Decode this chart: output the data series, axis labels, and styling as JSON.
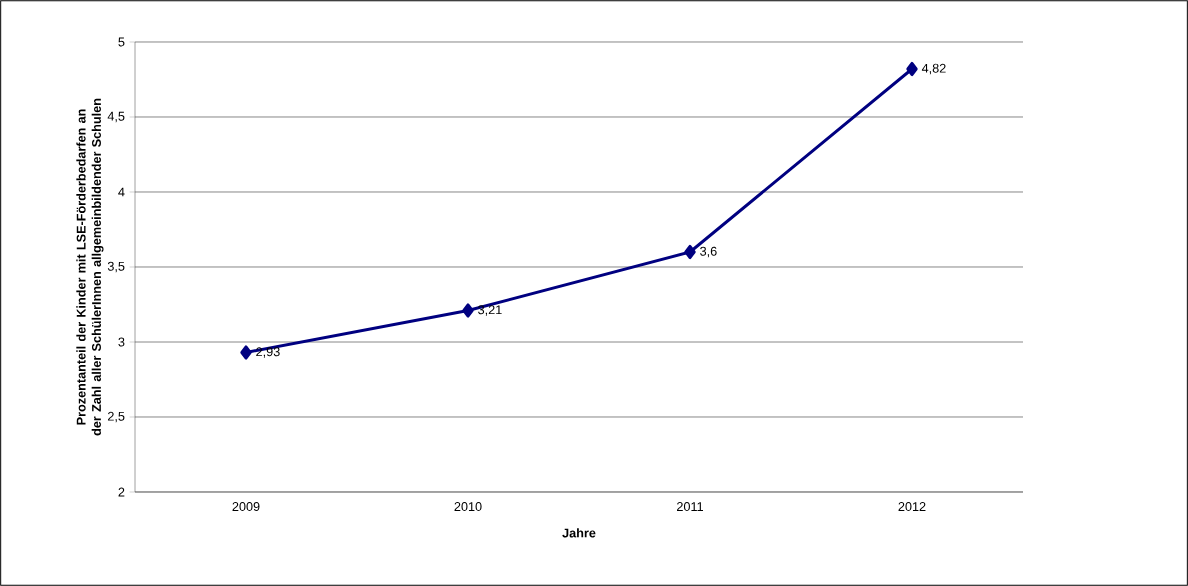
{
  "chart_data": {
    "type": "line",
    "xlabel": "Jahre",
    "ylabel": "Prozentanteil der Kinder mit LSE-Förderbedarfen an der Zahl aller SchülerInnen allgemeinbildender Schulen",
    "categories": [
      "2009",
      "2010",
      "2011",
      "2012"
    ],
    "values": [
      2.93,
      3.21,
      3.6,
      4.82
    ],
    "value_labels": [
      "2,93",
      "3,21",
      "3,6",
      "4,82"
    ],
    "color": "#000080",
    "marker": "diamond",
    "line_style": "solid",
    "ylim": [
      2,
      5
    ],
    "yticks": [
      2,
      {
        "value": 2.5,
        "label": "2,5"
      },
      3,
      {
        "value": 3.5,
        "label": "3,5"
      },
      4,
      {
        "value": 4.5,
        "label": "4,5"
      },
      5
    ],
    "grid": "y"
  }
}
